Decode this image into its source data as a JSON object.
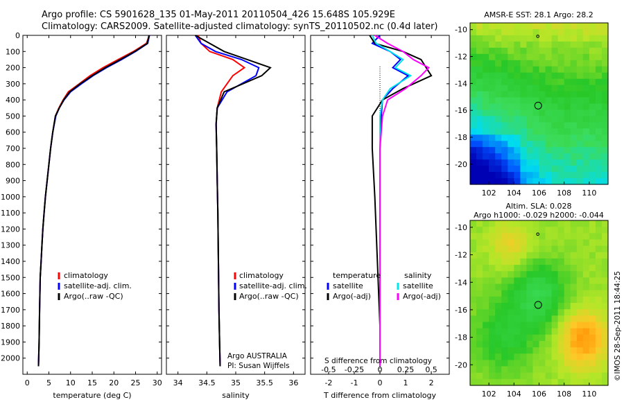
{
  "title_line1": "Argo profile: CS 5901628_135 01-May-2011 20110504_426 15.648S 105.929E",
  "title_line2": "Climatology: CARS2009. Satellite-adjusted climatology: synTS_20110502.nc (0.4d later)",
  "footer_left": "Argo AUSTRALIA",
  "footer_pi": "PI: Susan Wijffels",
  "imos_stamp": "©IMOS 28-Sep-2011 18:44:25",
  "colors": {
    "climatology": "#ff0000",
    "satellite": "#0000ff",
    "argo": "#000000",
    "salinity_satellite": "#00e5ee",
    "salinity_argo": "#ff00ff"
  },
  "chart_data": [
    {
      "type": "line",
      "name": "temperature-profile",
      "xlabel": "temperature (deg C)",
      "xlim": [
        -1,
        31
      ],
      "xticks": [
        "0",
        "5",
        "10",
        "15",
        "20",
        "25",
        "30"
      ],
      "ylim": [
        2100,
        0
      ],
      "yticks": [
        "0",
        "100",
        "200",
        "300",
        "400",
        "500",
        "600",
        "700",
        "800",
        "900",
        "1000",
        "1100",
        "1200",
        "1300",
        "1400",
        "1500",
        "1600",
        "1700",
        "1800",
        "1900",
        "2000"
      ],
      "legend": [
        "climatology",
        "satellite-adj. clim.",
        "Argo(..raw -QC)"
      ],
      "series": [
        {
          "name": "climatology",
          "color": "#ff0000",
          "x": [
            28.2,
            27.5,
            24.5,
            21,
            17.5,
            14.5,
            12,
            9.5,
            8.3,
            7.3,
            6.5,
            5.9,
            5.4,
            5,
            4.6,
            4.2,
            3.9,
            3.6,
            3.4,
            3.2,
            3.0,
            2.85,
            2.75,
            2.6
          ],
          "y": [
            0,
            50,
            100,
            150,
            200,
            250,
            300,
            350,
            400,
            450,
            500,
            600,
            700,
            800,
            900,
            1000,
            1100,
            1200,
            1300,
            1400,
            1500,
            1700,
            1900,
            2050
          ]
        },
        {
          "name": "satellite-adj. clim.",
          "color": "#0000ff",
          "x": [
            28.2,
            27.8,
            25,
            21.8,
            18.3,
            15.2,
            12.5,
            10,
            8.5,
            7.4,
            6.6,
            5.9,
            5.4,
            5,
            4.6,
            4.2,
            3.9,
            3.6,
            3.4,
            3.2,
            3.0,
            2.85,
            2.75,
            2.6
          ],
          "y": [
            0,
            50,
            100,
            150,
            200,
            250,
            300,
            350,
            400,
            450,
            500,
            600,
            700,
            800,
            900,
            1000,
            1100,
            1200,
            1300,
            1400,
            1500,
            1700,
            1900,
            2050
          ]
        },
        {
          "name": "Argo(..raw -QC)",
          "color": "#000000",
          "x": [
            28.1,
            27.7,
            24.8,
            21.5,
            18,
            15,
            12.2,
            9.8,
            8.4,
            7.4,
            6.5,
            5.9,
            5.4,
            5,
            4.6,
            4.2,
            3.9,
            3.6,
            3.4,
            3.2,
            3.0,
            2.85,
            2.75,
            2.6
          ],
          "y": [
            0,
            50,
            100,
            150,
            200,
            250,
            300,
            350,
            400,
            450,
            500,
            600,
            700,
            800,
            900,
            1000,
            1100,
            1200,
            1300,
            1400,
            1500,
            1700,
            1900,
            2050
          ]
        }
      ]
    },
    {
      "type": "line",
      "name": "salinity-profile",
      "xlabel": "salinity",
      "xlim": [
        33.8,
        36.2
      ],
      "xticks": [
        "34",
        "34.5",
        "35",
        "35.5",
        "36"
      ],
      "ylim": [
        2100,
        0
      ],
      "legend": [
        "climatology",
        "satellite-adj. clim.",
        "Argo(..raw -QC)"
      ],
      "series": [
        {
          "name": "climatology",
          "color": "#ff0000",
          "x": [
            34.35,
            34.4,
            34.55,
            34.95,
            35.15,
            34.95,
            34.75,
            34.68,
            34.66,
            34.67,
            34.68,
            34.69,
            34.7,
            34.71,
            34.72,
            34.73
          ],
          "y": [
            0,
            50,
            100,
            150,
            200,
            250,
            350,
            450,
            550,
            700,
            900,
            1100,
            1400,
            1700,
            1900,
            2050
          ]
        },
        {
          "name": "satellite-adj. clim.",
          "color": "#0000ff",
          "x": [
            34.3,
            34.4,
            34.65,
            35.1,
            35.4,
            35.35,
            34.85,
            34.68,
            34.66,
            34.67,
            34.68,
            34.69,
            34.7,
            34.71,
            34.72,
            34.73
          ],
          "y": [
            0,
            50,
            100,
            150,
            200,
            250,
            350,
            450,
            550,
            700,
            900,
            1100,
            1400,
            1700,
            1900,
            2050
          ]
        },
        {
          "name": "Argo(..raw -QC)",
          "color": "#000000",
          "x": [
            34.3,
            34.55,
            34.8,
            35.2,
            35.6,
            35.45,
            34.8,
            34.68,
            34.66,
            34.67,
            34.68,
            34.69,
            34.7,
            34.71,
            34.72,
            34.73
          ],
          "y": [
            0,
            50,
            100,
            150,
            200,
            250,
            350,
            450,
            550,
            700,
            900,
            1100,
            1400,
            1700,
            1900,
            2050
          ]
        }
      ]
    },
    {
      "type": "line",
      "name": "difference-profile",
      "xlabel": "T difference from climatology",
      "xlabel_top": "S difference from climatology",
      "xlim": [
        -2.7,
        2.7
      ],
      "xticks": [
        "-2",
        "-1",
        "0",
        "1",
        "2"
      ],
      "xticks_salinity": [
        "-0.5",
        "-0.25",
        "0",
        "0.25",
        "0.5"
      ],
      "ylim": [
        2100,
        0
      ],
      "legend_temperature": [
        "temperature",
        "satellite",
        "Argo(-adj)"
      ],
      "legend_salinity": [
        "salinity",
        "satellite",
        "Argo(-adj)"
      ],
      "series": [
        {
          "name": "temperature satellite",
          "color": "#0000ff",
          "x": [
            0,
            -0.3,
            0.4,
            0.8,
            0.5,
            1.1,
            0.5,
            0.1,
            0.05,
            0,
            0,
            0,
            0,
            0
          ],
          "y": [
            0,
            50,
            100,
            150,
            200,
            250,
            330,
            400,
            500,
            700,
            1000,
            1400,
            1800,
            2050
          ]
        },
        {
          "name": "temperature Argo(-adj)",
          "color": "#000000",
          "x": [
            -0.4,
            -0.2,
            0.9,
            1.6,
            1.8,
            2.0,
            0.9,
            0.1,
            -0.3,
            -0.3,
            -0.2,
            -0.1,
            0,
            0
          ],
          "y": [
            0,
            50,
            100,
            150,
            200,
            250,
            330,
            400,
            500,
            700,
            1000,
            1400,
            1800,
            2050
          ]
        },
        {
          "name": "salinity satellite",
          "color": "#00e5ee",
          "x": [
            -0.3,
            -0.15,
            0.4,
            0.9,
            0.6,
            1.2,
            0.4,
            0.1,
            0,
            0,
            0,
            0,
            0,
            0
          ],
          "y": [
            0,
            50,
            100,
            150,
            200,
            250,
            330,
            400,
            500,
            700,
            1000,
            1400,
            1800,
            2050
          ]
        },
        {
          "name": "salinity Argo(-adj)",
          "color": "#ff00ff",
          "x": [
            -0.2,
            0.3,
            0.9,
            1.3,
            1.9,
            1.6,
            1.0,
            0.3,
            0.1,
            0,
            0,
            0,
            0,
            0
          ],
          "y": [
            0,
            50,
            100,
            150,
            200,
            250,
            330,
            400,
            500,
            700,
            1000,
            1400,
            1800,
            2050
          ]
        }
      ]
    },
    {
      "type": "heatmap",
      "name": "sst-map",
      "title": "AMSR-E SST: 28.1  Argo: 28.2",
      "xlim": [
        100.5,
        111.5
      ],
      "ylim": [
        -21.5,
        -9.5
      ],
      "xticks": [
        "102",
        "104",
        "106",
        "108",
        "110"
      ],
      "yticks": [
        "-10",
        "-12",
        "-14",
        "-16",
        "-18",
        "-20"
      ],
      "float_position": [
        105.929,
        -15.648
      ],
      "prev_position": [
        105.9,
        -10.5
      ]
    },
    {
      "type": "heatmap",
      "name": "sla-map",
      "title": "Altim. SLA: 0.028",
      "subtitle": "Argo h1000: -0.029 h2000: -0.044",
      "xlim": [
        100.5,
        111.5
      ],
      "ylim": [
        -21.5,
        -9.5
      ],
      "xticks": [
        "102",
        "104",
        "106",
        "108",
        "110"
      ],
      "yticks": [
        "-10",
        "-12",
        "-14",
        "-16",
        "-18",
        "-20"
      ],
      "float_position": [
        105.929,
        -15.648
      ],
      "prev_position": [
        105.9,
        -10.5
      ]
    }
  ]
}
